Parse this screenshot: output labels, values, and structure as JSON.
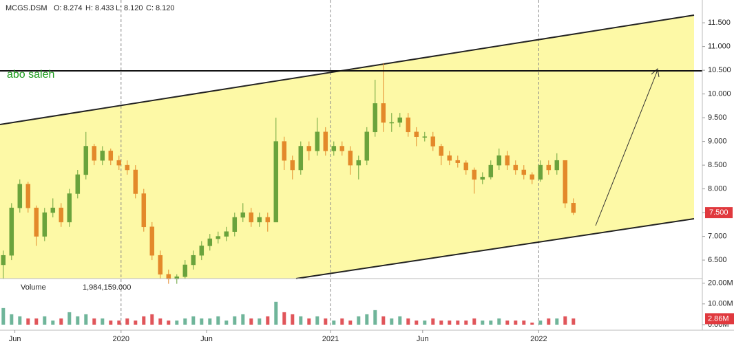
{
  "chart_data": {
    "type": "candlestick",
    "symbol": "MCGS.DSM",
    "ohlc_legend": [
      {
        "prefix": "O:",
        "number": {
          "value": 8.274,
          "label": "8.274"
        }
      },
      {
        "prefix": "H:",
        "number": {
          "value": 8.433,
          "label": "8.433"
        }
      },
      {
        "prefix": "L:",
        "number": {
          "value": 8.12,
          "label": "8.120"
        }
      },
      {
        "prefix": "C:",
        "number": {
          "value": 8.12,
          "label": "8.120"
        }
      }
    ],
    "annotation": "abo saleh",
    "volume_title": "Volume",
    "volume_readout": {
      "value": 1984159,
      "label": "1,984,159.000"
    },
    "open": [
      6.4,
      6.6,
      7.6,
      8.1,
      7.6,
      7.0,
      7.5,
      7.6,
      7.3,
      7.9,
      8.3,
      8.9,
      8.6,
      8.8,
      8.6,
      8.5,
      8.4,
      7.9,
      7.2,
      6.6,
      6.2,
      6.1,
      6.15,
      6.4,
      6.6,
      6.8,
      6.95,
      7.0,
      7.1,
      7.4,
      7.5,
      7.3,
      7.4,
      7.3,
      9.0,
      8.6,
      8.4,
      8.9,
      8.8,
      9.2,
      8.8,
      8.9,
      8.8,
      8.5,
      8.6,
      9.2,
      9.8,
      9.4,
      9.4,
      9.5,
      9.2,
      9.1,
      9.1,
      8.9,
      8.7,
      8.6,
      8.55,
      8.4,
      8.2,
      8.25,
      8.5,
      8.7,
      8.5,
      8.4,
      8.3,
      8.2,
      8.5,
      8.4,
      8.6,
      7.7
    ],
    "high": [
      6.7,
      7.7,
      8.2,
      8.15,
      7.65,
      7.6,
      7.8,
      7.7,
      8.0,
      8.4,
      9.2,
      8.95,
      8.9,
      8.85,
      8.7,
      8.6,
      8.5,
      8.0,
      7.3,
      6.7,
      6.3,
      6.2,
      6.5,
      6.7,
      6.9,
      7.05,
      7.1,
      7.2,
      7.5,
      7.7,
      7.6,
      7.5,
      7.5,
      9.5,
      9.1,
      8.7,
      9.0,
      9.0,
      9.5,
      9.3,
      9.0,
      9.0,
      8.9,
      8.7,
      9.3,
      10.3,
      10.65,
      9.6,
      9.6,
      9.6,
      9.3,
      9.2,
      9.2,
      8.95,
      8.8,
      8.7,
      8.6,
      8.45,
      8.35,
      8.6,
      8.85,
      8.8,
      8.6,
      8.5,
      8.35,
      8.6,
      8.6,
      8.75,
      8.6,
      7.8
    ],
    "low": [
      6.1,
      6.5,
      7.5,
      7.5,
      6.8,
      6.9,
      7.4,
      7.2,
      7.2,
      7.8,
      8.2,
      8.5,
      8.5,
      8.5,
      8.4,
      8.3,
      7.8,
      7.1,
      6.5,
      6.1,
      6.0,
      6.0,
      6.1,
      6.3,
      6.5,
      6.7,
      6.85,
      6.9,
      7.0,
      7.3,
      7.2,
      7.2,
      7.1,
      7.3,
      8.4,
      8.2,
      8.3,
      8.6,
      8.7,
      8.7,
      8.7,
      8.7,
      8.3,
      8.2,
      8.5,
      9.1,
      9.2,
      9.2,
      9.3,
      9.1,
      8.9,
      9.0,
      8.8,
      8.5,
      8.5,
      8.45,
      8.3,
      7.9,
      8.1,
      8.2,
      8.4,
      8.4,
      8.3,
      8.2,
      8.1,
      8.15,
      8.3,
      8.3,
      7.6,
      7.45
    ],
    "close": [
      6.6,
      7.6,
      8.1,
      7.6,
      7.0,
      7.5,
      7.6,
      7.3,
      7.9,
      8.3,
      8.9,
      8.6,
      8.8,
      8.6,
      8.5,
      8.4,
      7.9,
      7.2,
      6.6,
      6.2,
      6.1,
      6.15,
      6.4,
      6.6,
      6.8,
      6.95,
      7.0,
      7.1,
      7.4,
      7.5,
      7.3,
      7.4,
      7.3,
      9.0,
      8.6,
      8.4,
      8.9,
      8.8,
      9.2,
      8.8,
      8.9,
      8.8,
      8.5,
      8.6,
      9.2,
      9.8,
      9.4,
      9.4,
      9.5,
      9.2,
      9.1,
      9.1,
      8.9,
      8.7,
      8.6,
      8.55,
      8.4,
      8.2,
      8.25,
      8.5,
      8.7,
      8.5,
      8.4,
      8.3,
      8.2,
      8.5,
      8.4,
      8.6,
      7.7,
      7.5
    ],
    "volume": [
      8,
      5,
      4,
      3,
      3,
      4,
      2,
      3,
      6,
      4,
      5,
      3,
      3,
      2,
      2,
      3,
      2,
      4,
      5,
      3,
      2,
      2,
      3,
      4,
      3,
      3,
      4,
      2,
      4,
      5,
      3,
      3,
      4,
      11,
      6,
      5,
      4,
      3,
      4,
      3,
      2,
      3,
      2,
      4,
      5,
      7,
      4,
      3,
      4,
      3,
      2,
      2,
      3,
      2,
      2,
      2,
      2,
      3,
      2,
      2,
      3,
      2,
      2,
      2,
      1,
      2,
      3,
      3,
      4,
      3
    ],
    "up_color": "#6aa33c",
    "down_color": "#e3892a",
    "volume_up_color": "#6fb59a",
    "volume_down_color": "#e0555a",
    "xlim": [
      -0.4,
      84.6
    ],
    "xticks": [
      {
        "value": 1.4,
        "label": "Jun"
      },
      {
        "value": 14.25,
        "label": "2020"
      },
      {
        "value": 24.6,
        "label": "Jun"
      },
      {
        "value": 39.6,
        "label": "2021"
      },
      {
        "value": 50.75,
        "label": "Jun"
      },
      {
        "value": 64.8,
        "label": "2022"
      }
    ],
    "ylim": [
      6.11,
      11.98
    ],
    "yticks": [
      {
        "value": 6.5,
        "label": "6.500"
      },
      {
        "value": 7.0,
        "label": "7.000"
      },
      {
        "value": 7.5,
        "label": "7.500"
      },
      {
        "value": 8.0,
        "label": "8.000"
      },
      {
        "value": 8.5,
        "label": "8.500"
      },
      {
        "value": 9.0,
        "label": "9.000"
      },
      {
        "value": 9.5,
        "label": "9.500"
      },
      {
        "value": 10.0,
        "label": "10.000"
      },
      {
        "value": 10.5,
        "label": "10.500"
      },
      {
        "value": 11.0,
        "label": "11.000"
      },
      {
        "value": 11.5,
        "label": "11.500"
      }
    ],
    "last_price": {
      "value": 7.5,
      "label": "7.500"
    },
    "volume_ylim": [
      -1,
      22.2
    ],
    "volume_yticks": [
      {
        "value": 0,
        "label": "0.00M"
      },
      {
        "value": 10,
        "label": "10.00M"
      },
      {
        "value": 20,
        "label": "20.00M"
      }
    ],
    "last_volume": {
      "value": 2.86,
      "label": "2.86M"
    }
  }
}
